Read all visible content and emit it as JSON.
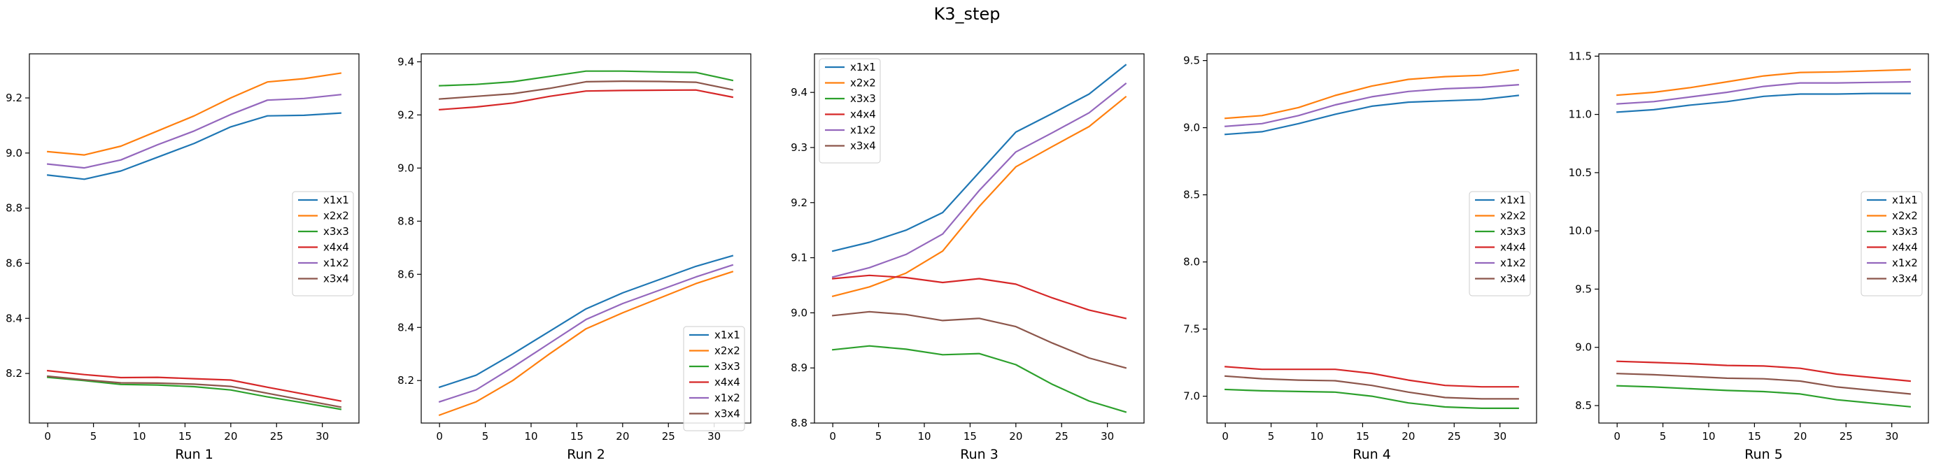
{
  "title": "K3_step",
  "colors": {
    "x1x1": "#1f77b4",
    "x2x2": "#ff7f0e",
    "x3x3": "#2ca02c",
    "x4x4": "#d62728",
    "x1x2": "#9467bd",
    "x3x4": "#8c564b"
  },
  "chart_data": [
    {
      "type": "line",
      "xlabel": "Run 1",
      "x": [
        0,
        4,
        8,
        12,
        16,
        20,
        24,
        28,
        32
      ],
      "xlim": [
        -2,
        34
      ],
      "ylim": [
        8.02,
        9.36
      ],
      "xticks": [
        0,
        5,
        10,
        15,
        20,
        25,
        30
      ],
      "yticks": [
        8.2,
        8.4,
        8.6,
        8.8,
        9.0,
        9.2
      ],
      "ytick_labels": [
        "8.2",
        "8.4",
        "8.6",
        "8.8",
        "9.0",
        "9.2"
      ],
      "legend_loc": "center-right",
      "series": [
        {
          "name": "x1x1",
          "values": [
            8.92,
            8.905,
            8.935,
            8.985,
            9.035,
            9.095,
            9.135,
            9.137,
            9.145
          ]
        },
        {
          "name": "x2x2",
          "values": [
            9.005,
            8.993,
            9.025,
            9.08,
            9.135,
            9.2,
            9.258,
            9.27,
            9.29
          ]
        },
        {
          "name": "x3x3",
          "values": [
            8.186,
            8.174,
            8.16,
            8.158,
            8.152,
            8.14,
            8.115,
            8.093,
            8.07
          ]
        },
        {
          "name": "x4x4",
          "values": [
            8.21,
            8.196,
            8.185,
            8.186,
            8.181,
            8.176,
            8.15,
            8.125,
            8.1
          ]
        },
        {
          "name": "x1x2",
          "values": [
            8.96,
            8.946,
            8.975,
            9.03,
            9.08,
            9.14,
            9.192,
            9.198,
            9.212
          ]
        },
        {
          "name": "x3x4",
          "values": [
            8.19,
            8.177,
            8.166,
            8.165,
            8.161,
            8.153,
            8.128,
            8.103,
            8.078
          ]
        }
      ]
    },
    {
      "type": "line",
      "xlabel": "Run 2",
      "x": [
        0,
        4,
        8,
        12,
        16,
        20,
        24,
        28,
        32
      ],
      "xlim": [
        -2,
        34
      ],
      "ylim": [
        8.04,
        9.43
      ],
      "xticks": [
        0,
        5,
        10,
        15,
        20,
        25,
        30
      ],
      "yticks": [
        8.2,
        8.4,
        8.6,
        8.8,
        9.0,
        9.2,
        9.4
      ],
      "ytick_labels": [
        "8.2",
        "8.4",
        "8.6",
        "8.8",
        "9.0",
        "9.2",
        "9.4"
      ],
      "legend_loc": "bottom-right",
      "series": [
        {
          "name": "x1x1",
          "values": [
            8.175,
            8.22,
            8.3,
            8.385,
            8.47,
            8.53,
            8.58,
            8.63,
            8.67
          ]
        },
        {
          "name": "x2x2",
          "values": [
            8.07,
            8.12,
            8.2,
            8.3,
            8.395,
            8.455,
            8.51,
            8.565,
            8.61
          ]
        },
        {
          "name": "x3x3",
          "values": [
            9.31,
            9.315,
            9.325,
            9.345,
            9.365,
            9.365,
            9.362,
            9.36,
            9.33
          ]
        },
        {
          "name": "x4x4",
          "values": [
            9.22,
            9.23,
            9.245,
            9.27,
            9.29,
            9.292,
            9.293,
            9.294,
            9.267
          ]
        },
        {
          "name": "x1x2",
          "values": [
            8.12,
            8.165,
            8.25,
            8.34,
            8.43,
            8.49,
            8.54,
            8.59,
            8.635
          ]
        },
        {
          "name": "x3x4",
          "values": [
            9.26,
            9.27,
            9.28,
            9.3,
            9.325,
            9.327,
            9.326,
            9.323,
            9.295
          ]
        }
      ]
    },
    {
      "type": "line",
      "xlabel": "Run 3",
      "x": [
        0,
        4,
        8,
        12,
        16,
        20,
        24,
        28,
        32
      ],
      "xlim": [
        -2,
        34
      ],
      "ylim": [
        8.8,
        9.47
      ],
      "xticks": [
        0,
        5,
        10,
        15,
        20,
        25,
        30
      ],
      "yticks": [
        8.8,
        8.9,
        9.0,
        9.1,
        9.2,
        9.3,
        9.4
      ],
      "ytick_labels": [
        "8.8",
        "8.9",
        "9.0",
        "9.1",
        "9.2",
        "9.3",
        "9.4"
      ],
      "legend_loc": "top-left",
      "series": [
        {
          "name": "x1x1",
          "values": [
            9.112,
            9.128,
            9.15,
            9.182,
            9.255,
            9.328,
            9.362,
            9.397,
            9.45
          ]
        },
        {
          "name": "x2x2",
          "values": [
            9.03,
            9.047,
            9.072,
            9.112,
            9.193,
            9.265,
            9.302,
            9.338,
            9.392
          ]
        },
        {
          "name": "x3x3",
          "values": [
            8.933,
            8.94,
            8.934,
            8.924,
            8.926,
            8.906,
            8.87,
            8.84,
            8.82
          ]
        },
        {
          "name": "x4x4",
          "values": [
            9.062,
            9.068,
            9.064,
            9.055,
            9.062,
            9.052,
            9.027,
            9.005,
            8.99
          ]
        },
        {
          "name": "x1x2",
          "values": [
            9.065,
            9.082,
            9.106,
            9.143,
            9.222,
            9.292,
            9.327,
            9.363,
            9.416
          ]
        },
        {
          "name": "x3x4",
          "values": [
            8.995,
            9.002,
            8.997,
            8.986,
            8.99,
            8.975,
            8.945,
            8.918,
            8.9
          ]
        }
      ]
    },
    {
      "type": "line",
      "xlabel": "Run 4",
      "x": [
        0,
        4,
        8,
        12,
        16,
        20,
        24,
        28,
        32
      ],
      "xlim": [
        -2,
        34
      ],
      "ylim": [
        6.8,
        9.55
      ],
      "xticks": [
        0,
        5,
        10,
        15,
        20,
        25,
        30
      ],
      "yticks": [
        7.0,
        7.5,
        8.0,
        8.5,
        9.0,
        9.5
      ],
      "ytick_labels": [
        "7.0",
        "7.5",
        "8.0",
        "8.5",
        "9.0",
        "9.5"
      ],
      "legend_loc": "center-right",
      "series": [
        {
          "name": "x1x1",
          "values": [
            8.95,
            8.97,
            9.03,
            9.1,
            9.16,
            9.19,
            9.2,
            9.21,
            9.24
          ]
        },
        {
          "name": "x2x2",
          "values": [
            9.07,
            9.09,
            9.15,
            9.24,
            9.31,
            9.36,
            9.38,
            9.39,
            9.43
          ]
        },
        {
          "name": "x3x3",
          "values": [
            7.05,
            7.04,
            7.035,
            7.03,
            7.0,
            6.95,
            6.92,
            6.91,
            6.91
          ]
        },
        {
          "name": "x4x4",
          "values": [
            7.22,
            7.2,
            7.2,
            7.2,
            7.17,
            7.12,
            7.08,
            7.07,
            7.07
          ]
        },
        {
          "name": "x1x2",
          "values": [
            9.01,
            9.03,
            9.09,
            9.17,
            9.23,
            9.27,
            9.29,
            9.3,
            9.32
          ]
        },
        {
          "name": "x3x4",
          "values": [
            7.15,
            7.13,
            7.12,
            7.115,
            7.08,
            7.03,
            6.99,
            6.98,
            6.98
          ]
        }
      ]
    },
    {
      "type": "line",
      "xlabel": "Run 5",
      "x": [
        0,
        4,
        8,
        12,
        16,
        20,
        24,
        28,
        32
      ],
      "xlim": [
        -2,
        34
      ],
      "ylim": [
        8.35,
        11.52
      ],
      "xticks": [
        0,
        5,
        10,
        15,
        20,
        25,
        30
      ],
      "yticks": [
        8.5,
        9.0,
        9.5,
        10.0,
        10.5,
        11.0,
        11.5
      ],
      "ytick_labels": [
        "8.5",
        "9.0",
        "9.5",
        "10.0",
        "10.5",
        "11.0",
        "11.5"
      ],
      "legend_loc": "center-right",
      "series": [
        {
          "name": "x1x1",
          "values": [
            11.02,
            11.04,
            11.08,
            11.11,
            11.155,
            11.175,
            11.175,
            11.18,
            11.18
          ]
        },
        {
          "name": "x2x2",
          "values": [
            11.165,
            11.19,
            11.23,
            11.28,
            11.33,
            11.36,
            11.365,
            11.375,
            11.385
          ]
        },
        {
          "name": "x3x3",
          "values": [
            8.67,
            8.66,
            8.645,
            8.63,
            8.62,
            8.6,
            8.55,
            8.52,
            8.49
          ]
        },
        {
          "name": "x4x4",
          "values": [
            8.88,
            8.87,
            8.86,
            8.845,
            8.84,
            8.82,
            8.77,
            8.74,
            8.71
          ]
        },
        {
          "name": "x1x2",
          "values": [
            11.09,
            11.11,
            11.15,
            11.19,
            11.24,
            11.27,
            11.27,
            11.275,
            11.28
          ]
        },
        {
          "name": "x3x4",
          "values": [
            8.775,
            8.765,
            8.75,
            8.735,
            8.73,
            8.71,
            8.66,
            8.63,
            8.6
          ]
        }
      ]
    }
  ]
}
